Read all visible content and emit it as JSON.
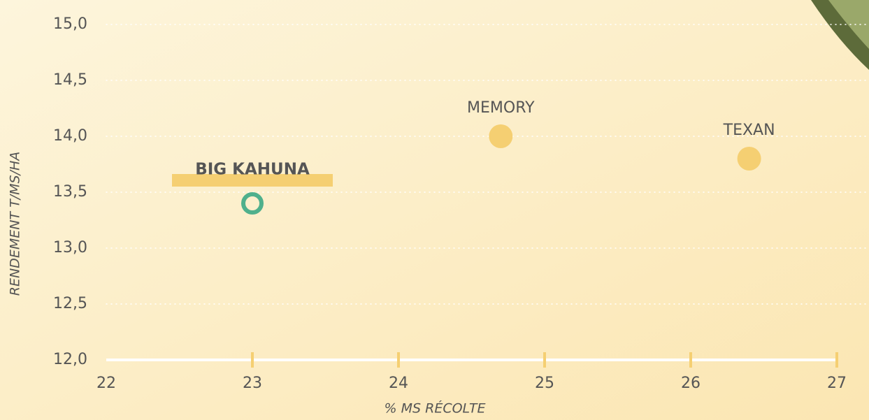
{
  "chart_data": {
    "type": "scatter",
    "x_label": "% MS RÉCOLTE",
    "y_label": "RENDEMENT T/MS/HA",
    "xlim": [
      22,
      27
    ],
    "xticks": [
      22,
      23,
      24,
      25,
      26,
      27
    ],
    "ylim": [
      12,
      15
    ],
    "yticks": [
      {
        "value": 12,
        "label": "12,0"
      },
      {
        "value": 12.5,
        "label": "12,5"
      },
      {
        "value": 13,
        "label": "13,0"
      },
      {
        "value": 13.5,
        "label": "13,5"
      },
      {
        "value": 14,
        "label": "14,0"
      },
      {
        "value": 14.5,
        "label": "14,5"
      },
      {
        "value": 15,
        "label": "15,0"
      }
    ],
    "grid": true,
    "series": [
      {
        "name": "BIG KAHUNA",
        "color": "#4fb08c",
        "marker": "ring",
        "x": [
          23.0
        ],
        "values": [
          13.4
        ]
      },
      {
        "name": "MEMORY",
        "color": "#f5cf72",
        "marker": "dot",
        "x": [
          24.7
        ],
        "values": [
          14.0
        ]
      },
      {
        "name": "TEXAN",
        "color": "#f5cf72",
        "marker": "dot",
        "x": [
          26.4
        ],
        "values": [
          13.8
        ]
      }
    ]
  }
}
